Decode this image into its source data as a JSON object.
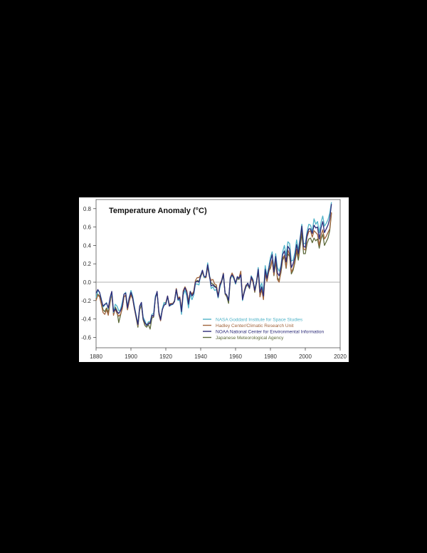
{
  "chart_data": {
    "type": "line",
    "title": "Temperature Anomaly (°C)",
    "xlabel": "",
    "ylabel": "",
    "xlim": [
      1880,
      2020
    ],
    "ylim": [
      -0.7,
      0.88
    ],
    "x_ticks": [
      1880,
      1900,
      1920,
      1940,
      1960,
      1980,
      2000,
      2020
    ],
    "x_tick_labels": [
      "1880",
      "1900",
      "1920",
      "1940",
      "1960",
      "1980",
      "2000",
      "2020"
    ],
    "y_ticks": [
      0.8,
      0.6,
      0.4,
      0.2,
      0.0,
      -0.2,
      -0.4,
      -0.6
    ],
    "y_tick_labels": [
      "0.8",
      "0.6",
      "0.4",
      "0.2",
      "0.0",
      "-0.2",
      "-0.4",
      "-0.6"
    ],
    "zero_line": true,
    "grid": false,
    "legend_position": "lower right",
    "x": [
      1880,
      1881,
      1882,
      1883,
      1884,
      1885,
      1886,
      1887,
      1888,
      1889,
      1890,
      1891,
      1892,
      1893,
      1894,
      1895,
      1896,
      1897,
      1898,
      1899,
      1900,
      1901,
      1902,
      1903,
      1904,
      1905,
      1906,
      1907,
      1908,
      1909,
      1910,
      1911,
      1912,
      1913,
      1914,
      1915,
      1916,
      1917,
      1918,
      1919,
      1920,
      1921,
      1922,
      1923,
      1924,
      1925,
      1926,
      1927,
      1928,
      1929,
      1930,
      1931,
      1932,
      1933,
      1934,
      1935,
      1936,
      1937,
      1938,
      1939,
      1940,
      1941,
      1942,
      1943,
      1944,
      1945,
      1946,
      1947,
      1948,
      1949,
      1950,
      1951,
      1952,
      1953,
      1954,
      1955,
      1956,
      1957,
      1958,
      1959,
      1960,
      1961,
      1962,
      1963,
      1964,
      1965,
      1966,
      1967,
      1968,
      1969,
      1970,
      1971,
      1972,
      1973,
      1974,
      1975,
      1976,
      1977,
      1978,
      1979,
      1980,
      1981,
      1982,
      1983,
      1984,
      1985,
      1986,
      1987,
      1988,
      1989,
      1990,
      1991,
      1992,
      1993,
      1994,
      1995,
      1996,
      1997,
      1998,
      1999,
      2000,
      2001,
      2002,
      2003,
      2004,
      2005,
      2006,
      2007,
      2008,
      2009,
      2010,
      2011,
      2012,
      2013,
      2014,
      2015
    ],
    "series": [
      {
        "name": "NASA Goddard Institute for Space Studies",
        "color": "#4fb3c8",
        "values": [
          -0.17,
          -0.09,
          -0.11,
          -0.18,
          -0.27,
          -0.25,
          -0.22,
          -0.29,
          -0.19,
          -0.11,
          -0.33,
          -0.24,
          -0.26,
          -0.31,
          -0.3,
          -0.22,
          -0.13,
          -0.11,
          -0.26,
          -0.17,
          -0.09,
          -0.15,
          -0.26,
          -0.36,
          -0.45,
          -0.28,
          -0.22,
          -0.38,
          -0.42,
          -0.47,
          -0.43,
          -0.43,
          -0.35,
          -0.34,
          -0.15,
          -0.11,
          -0.33,
          -0.4,
          -0.29,
          -0.22,
          -0.24,
          -0.16,
          -0.26,
          -0.25,
          -0.24,
          -0.21,
          -0.09,
          -0.2,
          -0.19,
          -0.35,
          -0.14,
          -0.09,
          -0.15,
          -0.28,
          -0.13,
          -0.19,
          -0.14,
          -0.02,
          -0.02,
          -0.03,
          0.08,
          0.13,
          0.05,
          0.07,
          0.21,
          0.09,
          -0.07,
          -0.05,
          -0.09,
          -0.08,
          -0.17,
          -0.06,
          0.01,
          0.09,
          -0.12,
          -0.14,
          -0.19,
          0.05,
          0.07,
          0.04,
          -0.02,
          0.06,
          0.04,
          0.07,
          -0.2,
          -0.1,
          -0.05,
          -0.01,
          -0.06,
          0.07,
          0.03,
          -0.08,
          0.01,
          0.16,
          -0.07,
          -0.01,
          -0.1,
          0.18,
          0.07,
          0.16,
          0.27,
          0.33,
          0.13,
          0.31,
          0.16,
          0.12,
          0.18,
          0.33,
          0.4,
          0.29,
          0.44,
          0.42,
          0.23,
          0.24,
          0.32,
          0.46,
          0.35,
          0.48,
          0.63,
          0.42,
          0.42,
          0.55,
          0.63,
          0.62,
          0.55,
          0.69,
          0.63,
          0.66,
          0.54,
          0.65,
          0.72,
          0.61,
          0.64,
          0.68,
          0.75,
          0.87
        ]
      },
      {
        "name": "Hadley Center/Climatic Research Unit",
        "color": "#a0643c",
        "values": [
          -0.2,
          -0.14,
          -0.16,
          -0.24,
          -0.33,
          -0.35,
          -0.3,
          -0.36,
          -0.23,
          -0.12,
          -0.36,
          -0.29,
          -0.34,
          -0.37,
          -0.35,
          -0.29,
          -0.16,
          -0.14,
          -0.3,
          -0.21,
          -0.14,
          -0.18,
          -0.29,
          -0.38,
          -0.47,
          -0.29,
          -0.24,
          -0.4,
          -0.45,
          -0.46,
          -0.44,
          -0.44,
          -0.37,
          -0.37,
          -0.16,
          -0.11,
          -0.35,
          -0.42,
          -0.3,
          -0.23,
          -0.22,
          -0.15,
          -0.24,
          -0.23,
          -0.24,
          -0.2,
          -0.07,
          -0.17,
          -0.16,
          -0.3,
          -0.09,
          -0.05,
          -0.09,
          -0.21,
          -0.1,
          -0.13,
          -0.1,
          0.02,
          0.05,
          0.05,
          0.08,
          0.11,
          0.06,
          0.05,
          0.17,
          0.07,
          0.02,
          0.03,
          -0.02,
          -0.03,
          -0.15,
          -0.02,
          0.02,
          0.1,
          -0.12,
          -0.15,
          -0.19,
          0.05,
          0.1,
          0.06,
          -0.01,
          0.05,
          0.05,
          0.12,
          -0.17,
          -0.09,
          -0.03,
          -0.03,
          -0.06,
          0.04,
          0.0,
          -0.1,
          0.01,
          0.12,
          -0.16,
          -0.08,
          -0.19,
          0.1,
          0.01,
          0.12,
          0.15,
          0.24,
          0.08,
          0.26,
          0.03,
          0.0,
          0.12,
          0.26,
          0.29,
          0.16,
          0.35,
          0.3,
          0.11,
          0.15,
          0.23,
          0.36,
          0.28,
          0.44,
          0.59,
          0.36,
          0.35,
          0.49,
          0.55,
          0.56,
          0.49,
          0.56,
          0.54,
          0.52,
          0.4,
          0.51,
          0.57,
          0.47,
          0.5,
          0.54,
          0.58,
          0.76
        ]
      },
      {
        "name": "NOAA National Center for Environmental Information",
        "color": "#2b2a78",
        "values": [
          -0.12,
          -0.08,
          -0.11,
          -0.19,
          -0.26,
          -0.24,
          -0.23,
          -0.28,
          -0.17,
          -0.1,
          -0.32,
          -0.29,
          -0.32,
          -0.34,
          -0.31,
          -0.26,
          -0.13,
          -0.12,
          -0.28,
          -0.17,
          -0.11,
          -0.17,
          -0.28,
          -0.37,
          -0.46,
          -0.26,
          -0.22,
          -0.4,
          -0.44,
          -0.47,
          -0.45,
          -0.45,
          -0.36,
          -0.37,
          -0.17,
          -0.1,
          -0.32,
          -0.41,
          -0.3,
          -0.25,
          -0.24,
          -0.15,
          -0.26,
          -0.24,
          -0.24,
          -0.21,
          -0.08,
          -0.19,
          -0.17,
          -0.32,
          -0.11,
          -0.06,
          -0.11,
          -0.24,
          -0.1,
          -0.15,
          -0.12,
          0.0,
          0.01,
          0.0,
          0.07,
          0.13,
          0.06,
          0.06,
          0.19,
          0.07,
          -0.04,
          -0.03,
          -0.05,
          -0.06,
          -0.16,
          -0.04,
          0.01,
          0.09,
          -0.12,
          -0.14,
          -0.2,
          0.05,
          0.08,
          0.05,
          -0.01,
          0.06,
          0.04,
          0.08,
          -0.19,
          -0.11,
          -0.04,
          -0.01,
          -0.06,
          0.06,
          0.02,
          -0.09,
          0.0,
          0.14,
          -0.11,
          -0.05,
          -0.15,
          0.14,
          0.04,
          0.14,
          0.23,
          0.3,
          0.11,
          0.28,
          0.1,
          0.07,
          0.15,
          0.3,
          0.34,
          0.22,
          0.39,
          0.36,
          0.16,
          0.2,
          0.27,
          0.41,
          0.31,
          0.46,
          0.61,
          0.39,
          0.38,
          0.52,
          0.58,
          0.58,
          0.53,
          0.62,
          0.59,
          0.6,
          0.47,
          0.59,
          0.66,
          0.54,
          0.58,
          0.62,
          0.69,
          0.85
        ]
      },
      {
        "name": "Japanese Meteorological Agency",
        "color": "#5d6a3a",
        "values": [
          -0.18,
          -0.13,
          -0.15,
          -0.22,
          -0.3,
          -0.32,
          -0.28,
          -0.33,
          -0.21,
          -0.12,
          -0.34,
          -0.27,
          -0.31,
          -0.44,
          -0.36,
          -0.28,
          -0.16,
          -0.14,
          -0.3,
          -0.2,
          -0.13,
          -0.18,
          -0.29,
          -0.39,
          -0.49,
          -0.3,
          -0.25,
          -0.41,
          -0.47,
          -0.49,
          -0.46,
          -0.51,
          -0.39,
          -0.38,
          -0.17,
          -0.12,
          -0.34,
          -0.4,
          -0.29,
          -0.23,
          -0.23,
          -0.16,
          -0.25,
          -0.24,
          -0.23,
          -0.2,
          -0.07,
          -0.18,
          -0.17,
          -0.31,
          -0.1,
          -0.06,
          -0.1,
          -0.22,
          -0.1,
          -0.14,
          -0.11,
          0.0,
          0.02,
          0.01,
          0.06,
          0.11,
          0.05,
          0.05,
          0.17,
          0.06,
          -0.01,
          -0.02,
          -0.04,
          -0.05,
          -0.17,
          -0.04,
          0.0,
          0.08,
          -0.13,
          -0.16,
          -0.23,
          0.03,
          0.08,
          0.04,
          -0.02,
          0.04,
          0.03,
          0.1,
          -0.18,
          -0.11,
          -0.05,
          -0.03,
          -0.07,
          0.05,
          0.01,
          -0.11,
          -0.01,
          0.12,
          -0.13,
          -0.07,
          -0.17,
          0.1,
          0.01,
          0.11,
          0.17,
          0.24,
          0.07,
          0.22,
          0.05,
          0.02,
          0.1,
          0.24,
          0.28,
          0.15,
          0.31,
          0.28,
          0.09,
          0.13,
          0.21,
          0.34,
          0.24,
          0.38,
          0.53,
          0.31,
          0.31,
          0.42,
          0.47,
          0.48,
          0.43,
          0.48,
          0.45,
          0.47,
          0.37,
          0.47,
          0.52,
          0.4,
          0.44,
          0.48,
          0.56,
          0.75
        ]
      }
    ]
  },
  "legend": {
    "items": [
      {
        "label": "NASA Goddard Institute for Space Studies",
        "color": "#4fb3c8",
        "text_color": "#4fb3c8"
      },
      {
        "label": "Hadley Center/Climatic Research Unit",
        "color": "#a0643c",
        "text_color": "#a0643c"
      },
      {
        "label": "NOAA National Center for Environmental Information",
        "color": "#2b2a78",
        "text_color": "#2b2a78"
      },
      {
        "label": "Japanese Meteorological Agency",
        "color": "#5d6a3a",
        "text_color": "#5d6a3a"
      }
    ]
  },
  "colors": {
    "page_background": "#000000",
    "figure_background": "#ffffff",
    "axis": "#333333",
    "zero_line": "#999999"
  }
}
